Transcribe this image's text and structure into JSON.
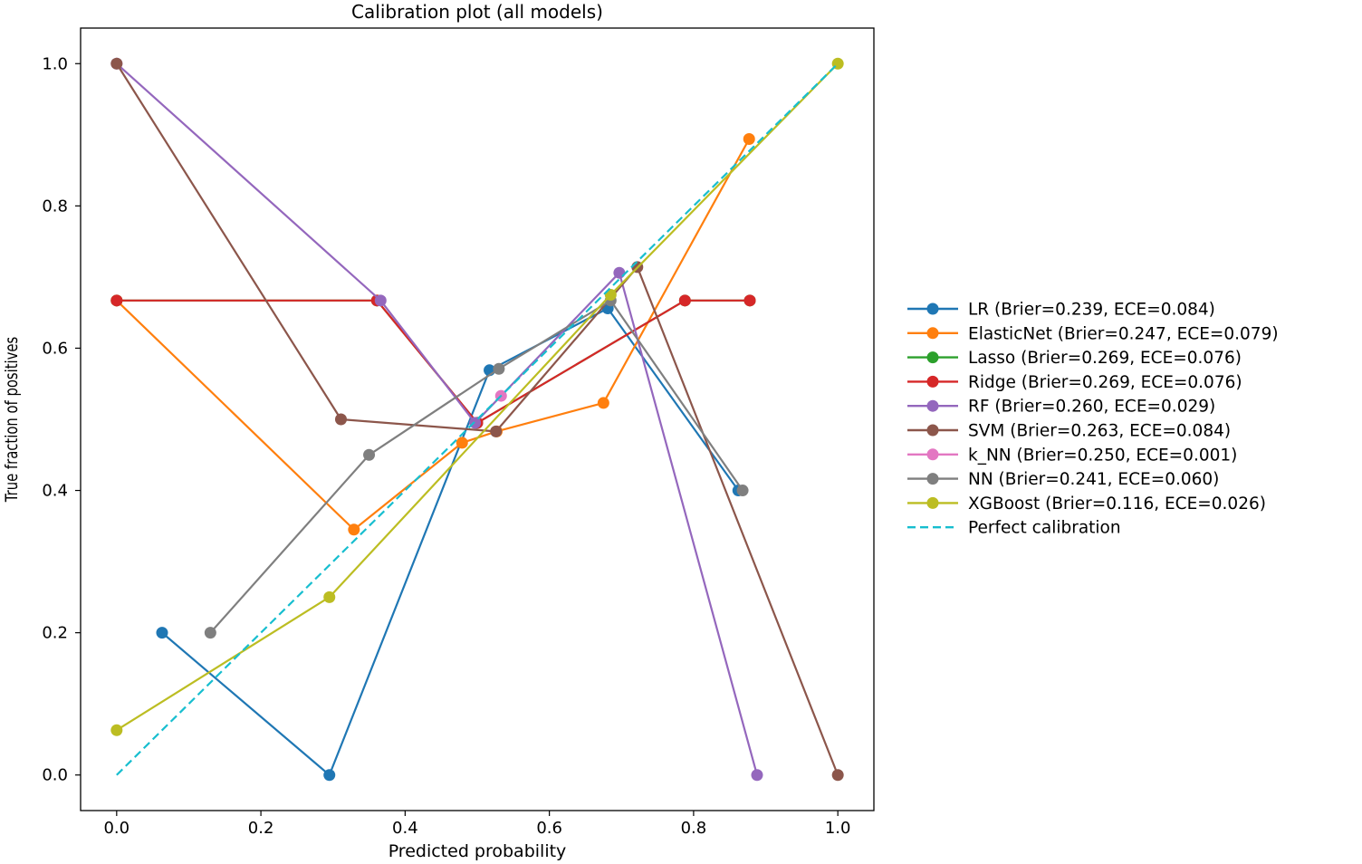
{
  "chart_data": {
    "type": "line",
    "title": "Calibration plot (all models)",
    "xlabel": "Predicted probability",
    "ylabel": "True fraction of positives",
    "xlim": [
      -0.05,
      1.05
    ],
    "ylim": [
      -0.05,
      1.05
    ],
    "xticks": [
      {
        "value": 0.0,
        "label": "0.0"
      },
      {
        "value": 0.2,
        "label": "0.2"
      },
      {
        "value": 0.4,
        "label": "0.4"
      },
      {
        "value": 0.6,
        "label": "0.6"
      },
      {
        "value": 0.8,
        "label": "0.8"
      },
      {
        "value": 1.0,
        "label": "1.0"
      }
    ],
    "yticks": [
      {
        "value": 0.0,
        "label": "0.0"
      },
      {
        "value": 0.2,
        "label": "0.2"
      },
      {
        "value": 0.4,
        "label": "0.4"
      },
      {
        "value": 0.6,
        "label": "0.6"
      },
      {
        "value": 0.8,
        "label": "0.8"
      },
      {
        "value": 1.0,
        "label": "1.0"
      }
    ],
    "grid": false,
    "legend_position": "outside-right",
    "series": [
      {
        "name": "LR",
        "label": "LR (Brier=0.239, ECE=0.084)",
        "color": "#1f77b4",
        "marker": "circle",
        "points": [
          [
            0.063,
            0.2
          ],
          [
            0.295,
            0.0
          ],
          [
            0.517,
            0.569
          ],
          [
            0.681,
            0.656
          ],
          [
            0.862,
            0.4
          ]
        ]
      },
      {
        "name": "ElasticNet",
        "label": "ElasticNet (Brier=0.247, ECE=0.079)",
        "color": "#ff7f0e",
        "marker": "circle",
        "points": [
          [
            0.0,
            0.667
          ],
          [
            0.329,
            0.345
          ],
          [
            0.479,
            0.467
          ],
          [
            0.527,
            0.483
          ],
          [
            0.675,
            0.523
          ],
          [
            0.877,
            0.894
          ]
        ]
      },
      {
        "name": "Lasso",
        "label": "Lasso (Brier=0.269, ECE=0.076)",
        "color": "#2ca02c",
        "marker": "circle",
        "points": [
          [
            0.0,
            0.667
          ],
          [
            0.361,
            0.667
          ],
          [
            0.5,
            0.495
          ],
          [
            0.788,
            0.667
          ],
          [
            0.878,
            0.667
          ]
        ]
      },
      {
        "name": "Ridge",
        "label": "Ridge (Brier=0.269, ECE=0.076)",
        "color": "#d62728",
        "marker": "circle",
        "points": [
          [
            0.0,
            0.667
          ],
          [
            0.361,
            0.667
          ],
          [
            0.5,
            0.495
          ],
          [
            0.788,
            0.667
          ],
          [
            0.878,
            0.667
          ]
        ]
      },
      {
        "name": "RF",
        "label": "RF (Brier=0.260, ECE=0.029)",
        "color": "#9467bd",
        "marker": "circle",
        "points": [
          [
            0.0,
            1.0
          ],
          [
            0.366,
            0.667
          ],
          [
            0.497,
            0.495
          ],
          [
            0.697,
            0.706
          ],
          [
            0.888,
            0.0
          ]
        ]
      },
      {
        "name": "SVM",
        "label": "SVM (Brier=0.263, ECE=0.084)",
        "color": "#8c564b",
        "marker": "circle",
        "points": [
          [
            0.0,
            1.0
          ],
          [
            0.311,
            0.5
          ],
          [
            0.526,
            0.483
          ],
          [
            0.722,
            0.714
          ],
          [
            1.0,
            0.0
          ]
        ]
      },
      {
        "name": "k_NN",
        "label": "k_NN (Brier=0.250, ECE=0.001)",
        "color": "#e377c2",
        "marker": "circle",
        "points": [
          [
            0.533,
            0.533
          ]
        ]
      },
      {
        "name": "NN",
        "label": "NN (Brier=0.241, ECE=0.060)",
        "color": "#7f7f7f",
        "marker": "circle",
        "points": [
          [
            0.13,
            0.2
          ],
          [
            0.35,
            0.45
          ],
          [
            0.53,
            0.571
          ],
          [
            0.685,
            0.667
          ],
          [
            0.868,
            0.4
          ]
        ]
      },
      {
        "name": "XGBoost",
        "label": "XGBoost (Brier=0.116, ECE=0.026)",
        "color": "#bcbd22",
        "marker": "circle",
        "points": [
          [
            0.0,
            0.063
          ],
          [
            0.295,
            0.25
          ],
          [
            0.685,
            0.675
          ],
          [
            1.0,
            1.0
          ]
        ]
      },
      {
        "name": "Perfect calibration",
        "label": "Perfect calibration",
        "color": "#17becf",
        "marker": "none",
        "dashed": true,
        "points": [
          [
            0.0,
            0.0
          ],
          [
            1.0,
            1.0
          ]
        ]
      }
    ]
  }
}
